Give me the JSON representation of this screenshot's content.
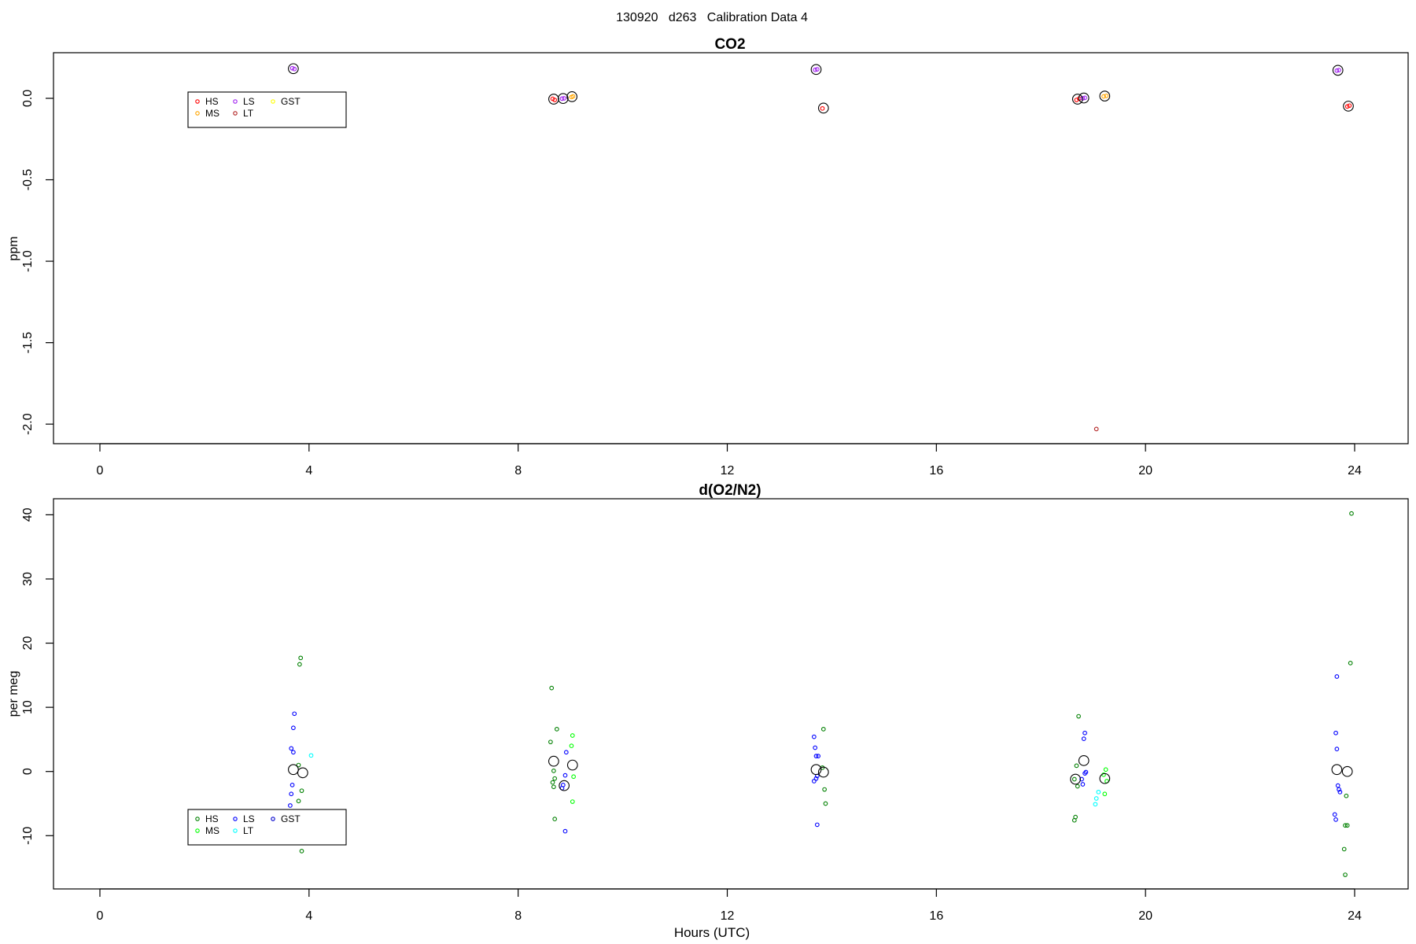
{
  "figure_title": "130920   d263   Calibration Data 4",
  "chart_data": [
    {
      "type": "scatter",
      "title": "CO2",
      "xlabel": "",
      "ylabel": "ppm",
      "xlim": [
        0,
        24
      ],
      "ylim": [
        -2.12,
        0.28
      ],
      "x_ticks": [
        0,
        4,
        8,
        12,
        16,
        20,
        24
      ],
      "y_ticks": [
        0.0,
        -0.5,
        -1.0,
        -1.5,
        -2.0
      ],
      "y_tick_labels": [
        "0.0",
        "-0.5",
        "-1.0",
        "-1.5",
        "-2.0"
      ],
      "grid": false,
      "legend_placement": "top-left",
      "legend": [
        {
          "name": "HS",
          "color": "#ff0000"
        },
        {
          "name": "MS",
          "color": "#ffa500"
        },
        {
          "name": "LS",
          "color": "#a020f0"
        },
        {
          "name": "LT",
          "color": "#b22222"
        },
        {
          "name": "GST",
          "color": "#ffff00"
        }
      ],
      "series": [
        {
          "name": "HS",
          "color": "#ff0000",
          "points": [
            [
              8.66,
              -0.003
            ],
            [
              8.7,
              -0.01
            ],
            [
              13.82,
              -0.062
            ],
            [
              18.68,
              -0.01
            ],
            [
              18.73,
              -0.002
            ],
            [
              23.86,
              -0.05
            ],
            [
              23.9,
              -0.045
            ]
          ]
        },
        {
          "name": "MS",
          "color": "#ffa500",
          "points": [
            [
              9.02,
              0.008
            ],
            [
              9.05,
              0.012
            ],
            [
              19.2,
              0.012
            ],
            [
              19.25,
              0.015
            ]
          ]
        },
        {
          "name": "LS",
          "color": "#a020f0",
          "points": [
            [
              3.68,
              0.185
            ],
            [
              3.72,
              0.18
            ],
            [
              8.84,
              -0.002
            ],
            [
              8.88,
              0.0
            ],
            [
              13.68,
              0.175
            ],
            [
              13.72,
              0.178
            ],
            [
              18.8,
              0.0
            ],
            [
              18.84,
              0.003
            ],
            [
              23.66,
              0.17
            ],
            [
              23.7,
              0.173
            ]
          ]
        },
        {
          "name": "LT",
          "color": "#b22222",
          "points": [
            [
              19.06,
              -2.03
            ]
          ]
        }
      ],
      "means": [
        [
          3.7,
          0.182
        ],
        [
          8.68,
          -0.005
        ],
        [
          8.86,
          -0.001
        ],
        [
          9.03,
          0.01
        ],
        [
          13.7,
          0.177
        ],
        [
          13.84,
          -0.06
        ],
        [
          18.7,
          -0.005
        ],
        [
          18.82,
          0.002
        ],
        [
          19.22,
          0.014
        ],
        [
          23.68,
          0.172
        ],
        [
          23.88,
          -0.048
        ]
      ]
    },
    {
      "type": "scatter",
      "title": "d(O2/N2)",
      "xlabel": "Hours (UTC)",
      "ylabel": "per meg",
      "xlim": [
        0,
        24
      ],
      "ylim": [
        -18.3,
        42.5
      ],
      "x_ticks": [
        0,
        4,
        8,
        12,
        16,
        20,
        24
      ],
      "y_ticks": [
        -10,
        0,
        10,
        20,
        30,
        40
      ],
      "y_tick_labels": [
        "-10",
        "0",
        "10",
        "20",
        "30",
        "40"
      ],
      "grid": false,
      "legend_placement": "bottom-left",
      "legend": [
        {
          "name": "HS",
          "color": "#008000"
        },
        {
          "name": "MS",
          "color": "#00ff00"
        },
        {
          "name": "LS",
          "color": "#0000ff"
        },
        {
          "name": "LT",
          "color": "#00ffff"
        },
        {
          "name": "GST",
          "color": "#0000cd"
        }
      ],
      "series": [
        {
          "name": "HS",
          "color": "#008000",
          "points": [
            [
              3.84,
              17.7
            ],
            [
              3.82,
              16.7
            ],
            [
              3.8,
              1.0
            ],
            [
              3.86,
              -3.0
            ],
            [
              3.8,
              -4.6
            ],
            [
              3.86,
              -12.4
            ],
            [
              8.64,
              13.0
            ],
            [
              8.74,
              6.6
            ],
            [
              8.62,
              4.6
            ],
            [
              8.68,
              0.1
            ],
            [
              8.7,
              -1.1
            ],
            [
              8.66,
              -1.7
            ],
            [
              8.68,
              -2.4
            ],
            [
              8.7,
              -7.4
            ],
            [
              13.84,
              6.6
            ],
            [
              13.82,
              0.6
            ],
            [
              13.86,
              -2.8
            ],
            [
              13.88,
              -5.0
            ],
            [
              18.72,
              8.6
            ],
            [
              18.68,
              0.9
            ],
            [
              18.64,
              -1.2
            ],
            [
              18.7,
              -2.3
            ],
            [
              18.66,
              -7.1
            ],
            [
              18.64,
              -7.6
            ],
            [
              23.94,
              40.2
            ],
            [
              23.92,
              16.9
            ],
            [
              23.84,
              -3.8
            ],
            [
              23.82,
              -8.4
            ],
            [
              23.86,
              -8.4
            ],
            [
              23.8,
              -12.1
            ],
            [
              23.82,
              -16.1
            ]
          ]
        },
        {
          "name": "MS",
          "color": "#00ff00",
          "points": [
            [
              9.04,
              5.6
            ],
            [
              9.02,
              4.0
            ],
            [
              9.06,
              -0.8
            ],
            [
              9.04,
              -4.7
            ],
            [
              19.24,
              0.3
            ],
            [
              19.2,
              -0.5
            ],
            [
              19.26,
              -1.5
            ],
            [
              19.22,
              -3.5
            ]
          ]
        },
        {
          "name": "LS",
          "color": "#0000ff",
          "points": [
            [
              3.72,
              9.0
            ],
            [
              3.7,
              6.8
            ],
            [
              3.66,
              3.6
            ],
            [
              3.7,
              3.0
            ],
            [
              3.68,
              -2.1
            ],
            [
              3.66,
              -3.5
            ],
            [
              3.64,
              -5.3
            ],
            [
              8.92,
              3.0
            ],
            [
              8.9,
              -0.6
            ],
            [
              8.86,
              -2.1
            ],
            [
              8.84,
              -2.6
            ],
            [
              8.9,
              -9.3
            ],
            [
              13.66,
              5.4
            ],
            [
              13.68,
              3.7
            ],
            [
              13.7,
              2.4
            ],
            [
              13.74,
              2.4
            ],
            [
              13.72,
              -0.7
            ],
            [
              13.7,
              -1.1
            ],
            [
              13.66,
              -1.5
            ],
            [
              13.72,
              -8.3
            ],
            [
              18.84,
              6.0
            ],
            [
              18.82,
              5.1
            ],
            [
              18.86,
              -0.1
            ],
            [
              18.84,
              -0.3
            ],
            [
              18.78,
              -1.2
            ],
            [
              18.8,
              -2.0
            ],
            [
              23.66,
              14.8
            ],
            [
              23.64,
              6.0
            ],
            [
              23.66,
              3.5
            ],
            [
              23.68,
              -2.2
            ],
            [
              23.7,
              -2.8
            ],
            [
              23.72,
              -3.2
            ],
            [
              23.62,
              -6.7
            ],
            [
              23.64,
              -7.5
            ]
          ]
        },
        {
          "name": "LT",
          "color": "#00ffff",
          "points": [
            [
              4.04,
              2.5
            ],
            [
              19.1,
              -3.2
            ],
            [
              19.06,
              -4.2
            ],
            [
              19.04,
              -5.1
            ]
          ]
        }
      ],
      "means": [
        [
          3.7,
          0.3
        ],
        [
          3.88,
          -0.2
        ],
        [
          8.68,
          1.6
        ],
        [
          8.88,
          -2.2
        ],
        [
          9.04,
          1.0
        ],
        [
          13.7,
          0.3
        ],
        [
          13.84,
          -0.1
        ],
        [
          18.66,
          -1.2
        ],
        [
          18.82,
          1.7
        ],
        [
          19.22,
          -1.1
        ],
        [
          23.66,
          0.3
        ],
        [
          23.86,
          0.0
        ]
      ]
    }
  ]
}
